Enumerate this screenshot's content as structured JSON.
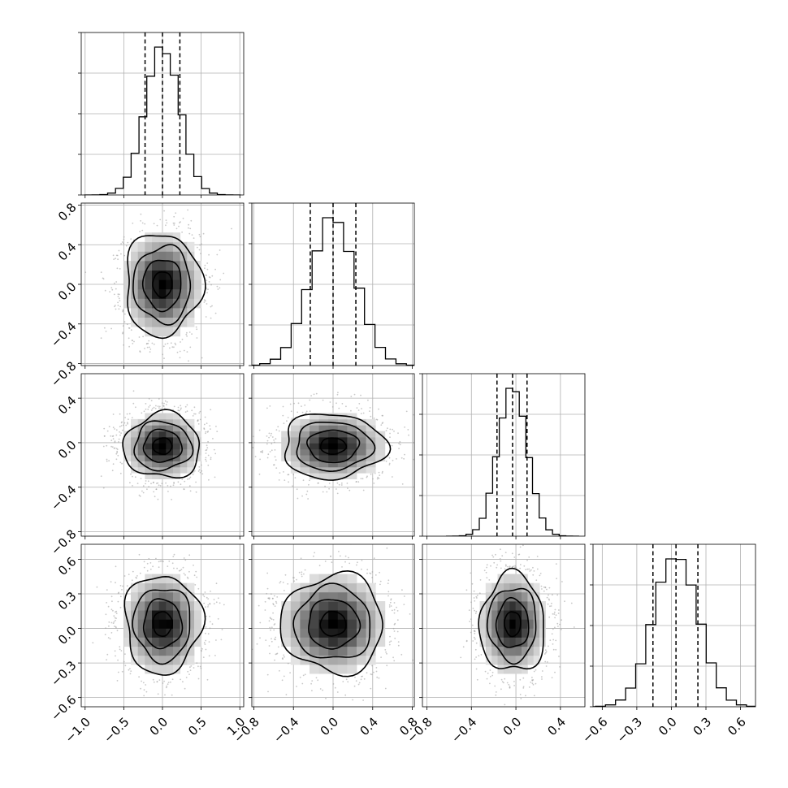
{
  "chart_data": {
    "type": "corner",
    "n_params": 4,
    "grid": true,
    "panels_note": "lower-triangular corner plot: 1D histograms on the diagonal, 2D scatter with density contours below",
    "axis_ranges": [
      [
        -1.05,
        1.05
      ],
      [
        -0.82,
        0.82
      ],
      [
        -0.84,
        0.62
      ],
      [
        -0.68,
        0.73
      ]
    ],
    "tick_values": [
      [
        -1.0,
        -0.5,
        0.0,
        0.5,
        1.0
      ],
      [
        -0.8,
        -0.4,
        0.0,
        0.4,
        0.8
      ],
      [
        -0.8,
        -0.4,
        0.0,
        0.4
      ],
      [
        -0.6,
        -0.3,
        0.0,
        0.3,
        0.6
      ]
    ],
    "tick_labels": [
      [
        "−1.0",
        "−0.5",
        "0.0",
        "0.5",
        "1.0"
      ],
      [
        "−0.8",
        "−0.4",
        "0.0",
        "0.4",
        "0.8"
      ],
      [
        "−0.8",
        "−0.4",
        "0.0",
        "0.4"
      ],
      [
        "−0.6",
        "−0.3",
        "0.0",
        "0.3",
        "0.6"
      ]
    ],
    "y_tick_labels": [
      [],
      [
        "−0.8",
        "−0.4",
        "0.0",
        "0.4",
        "0.8"
      ],
      [
        "−0.8",
        "−0.4",
        "0.0",
        "0.4"
      ],
      [
        "−0.6",
        "−0.3",
        "0.0",
        "0.3",
        "0.6"
      ]
    ],
    "parameters": [
      {
        "mean": 0.0,
        "sigma": 0.22,
        "q16": -0.225,
        "q50": 0.0,
        "q84": 0.225
      },
      {
        "mean": 0.0,
        "sigma": 0.23,
        "q16": -0.23,
        "q50": 0.0,
        "q84": 0.23
      },
      {
        "mean": -0.03,
        "sigma": 0.13,
        "q16": -0.17,
        "q50": -0.03,
        "q84": 0.1
      },
      {
        "mean": 0.04,
        "sigma": 0.19,
        "q16": -0.16,
        "q50": 0.04,
        "q84": 0.23
      }
    ],
    "histogram_bins": 20,
    "contour_levels": [
      0.118,
      0.393,
      0.675,
      0.865
    ]
  }
}
